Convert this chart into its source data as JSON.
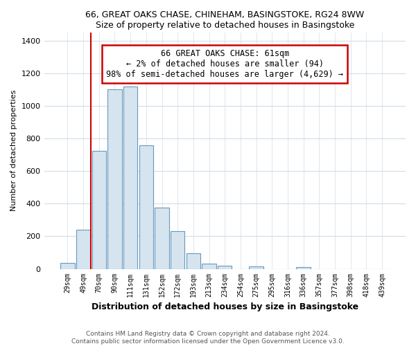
{
  "title": "66, GREAT OAKS CHASE, CHINEHAM, BASINGSTOKE, RG24 8WW",
  "subtitle": "Size of property relative to detached houses in Basingstoke",
  "xlabel": "Distribution of detached houses by size in Basingstoke",
  "ylabel": "Number of detached properties",
  "categories": [
    "29sqm",
    "49sqm",
    "70sqm",
    "90sqm",
    "111sqm",
    "131sqm",
    "152sqm",
    "172sqm",
    "193sqm",
    "213sqm",
    "234sqm",
    "254sqm",
    "275sqm",
    "295sqm",
    "316sqm",
    "336sqm",
    "357sqm",
    "377sqm",
    "398sqm",
    "418sqm",
    "439sqm"
  ],
  "values": [
    38,
    240,
    725,
    1100,
    1120,
    760,
    375,
    230,
    95,
    30,
    20,
    0,
    15,
    0,
    0,
    10,
    0,
    0,
    0,
    0,
    0
  ],
  "bar_color": "#d6e4f0",
  "bar_edge_color": "#6699bb",
  "property_line_x": 2.0,
  "property_line_color": "#cc0000",
  "annotation_text": "66 GREAT OAKS CHASE: 61sqm\n← 2% of detached houses are smaller (94)\n98% of semi-detached houses are larger (4,629) →",
  "annotation_box_color": "#ffffff",
  "annotation_box_edge": "#cc0000",
  "footer_line1": "Contains HM Land Registry data © Crown copyright and database right 2024.",
  "footer_line2": "Contains public sector information licensed under the Open Government Licence v3.0.",
  "ylim": [
    0,
    1450
  ],
  "yticks": [
    0,
    200,
    400,
    600,
    800,
    1000,
    1200,
    1400
  ],
  "background_color": "#ffffff",
  "plot_bg_color": "#ffffff",
  "grid_color": "#d0dde8"
}
